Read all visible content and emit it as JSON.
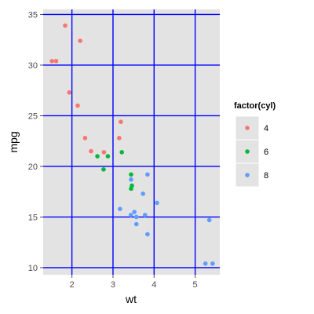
{
  "chart_data": {
    "type": "scatter",
    "xlabel": "wt",
    "ylabel": "mpg",
    "xlim": [
      1.3,
      5.6
    ],
    "ylim": [
      9.3,
      35.5
    ],
    "x_ticks": [
      2,
      3,
      4,
      5
    ],
    "y_ticks": [
      10,
      15,
      20,
      25,
      30,
      35
    ],
    "grid": true,
    "grid_color": "#0000ff",
    "panel_background": "#e3e3e3",
    "legend": {
      "title": "factor(cyl)",
      "placement": "right",
      "entries": [
        "4",
        "6",
        "8"
      ]
    },
    "series": [
      {
        "name": "4",
        "color": "#f8766d",
        "points": [
          [
            1.835,
            33.9
          ],
          [
            2.2,
            32.4
          ],
          [
            1.513,
            30.4
          ],
          [
            1.615,
            30.4
          ],
          [
            1.935,
            27.3
          ],
          [
            2.14,
            26.0
          ],
          [
            3.19,
            24.4
          ],
          [
            2.32,
            22.8
          ],
          [
            3.15,
            22.8
          ],
          [
            2.465,
            21.5
          ],
          [
            2.78,
            21.4
          ]
        ]
      },
      {
        "name": "6",
        "color": "#00ba38",
        "points": [
          [
            2.62,
            21.0
          ],
          [
            2.875,
            21.0
          ],
          [
            3.215,
            21.4
          ],
          [
            2.77,
            19.7
          ],
          [
            3.44,
            19.2
          ],
          [
            3.46,
            18.1
          ],
          [
            3.44,
            17.8
          ]
        ]
      },
      {
        "name": "8",
        "color": "#619cff",
        "points": [
          [
            3.84,
            19.2
          ],
          [
            4.07,
            16.4
          ],
          [
            3.73,
            17.3
          ],
          [
            3.44,
            18.7
          ],
          [
            3.17,
            15.8
          ],
          [
            3.52,
            15.5
          ],
          [
            3.435,
            15.2
          ],
          [
            3.78,
            15.2
          ],
          [
            3.57,
            15.0
          ],
          [
            3.57,
            14.3
          ],
          [
            3.84,
            13.3
          ],
          [
            5.345,
            14.7
          ],
          [
            5.25,
            10.4
          ],
          [
            5.424,
            10.4
          ]
        ]
      }
    ]
  }
}
